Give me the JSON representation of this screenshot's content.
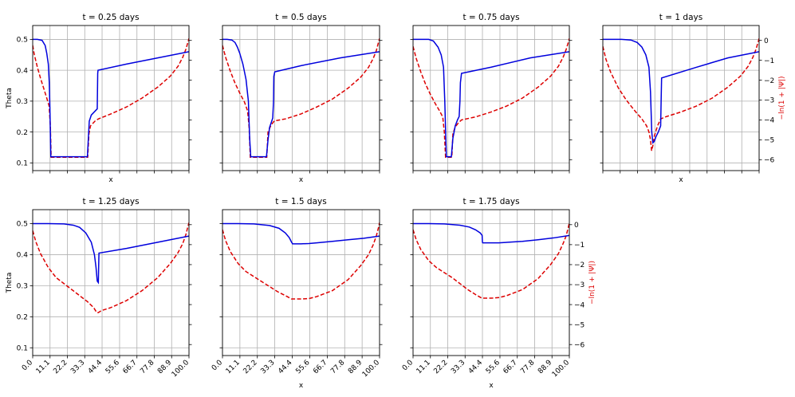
{
  "chart_data": {
    "type": "line",
    "shared": {
      "xlabel": "x",
      "ylabel_left": "Theta",
      "ylabel_right": "−ln(1 + |Ψ|)",
      "xlim": [
        0,
        100
      ],
      "ylim_left": [
        0.075,
        0.545
      ],
      "ylim_right": [
        -6.55,
        0.75
      ],
      "xticks": [
        0.0,
        11.1,
        22.2,
        33.3,
        44.4,
        55.6,
        66.7,
        77.8,
        88.9,
        100.0
      ],
      "xtick_labels": [
        "0.0",
        "11.1",
        "22.2",
        "33.3",
        "44.4",
        "55.6",
        "66.7",
        "77.8",
        "88.9",
        "100.0"
      ],
      "yticks_left": [
        0.1,
        0.2,
        0.3,
        0.4,
        0.5
      ],
      "ytick_labels_left": [
        "0.1",
        "0.2",
        "0.3",
        "0.4",
        "0.5"
      ],
      "yticks_right": [
        0,
        -1,
        -2,
        -3,
        -4,
        -5,
        -6
      ],
      "ytick_labels_right": [
        "0",
        "−1",
        "−2",
        "−3",
        "−4",
        "−5",
        "−6"
      ],
      "grid": true,
      "colors": {
        "theta": "#0000dd",
        "psi": "#dd0000"
      },
      "styles": {
        "theta": "solid",
        "psi": "dashed"
      }
    },
    "panels": [
      {
        "title": "t = 0.25 days",
        "theta": {
          "x": [
            0,
            3,
            6,
            8,
            9,
            10,
            10.6,
            11,
            11.6,
            12.5,
            35,
            36.2,
            37.5,
            41.3,
            41.5,
            41.6,
            41.8,
            60,
            80,
            100
          ],
          "y": [
            0.5,
            0.5,
            0.497,
            0.48,
            0.455,
            0.42,
            0.36,
            0.28,
            0.12,
            0.12,
            0.12,
            0.235,
            0.255,
            0.275,
            0.35,
            0.39,
            0.4,
            0.42,
            0.44,
            0.46
          ]
        },
        "psi": {
          "x": [
            0,
            1,
            3,
            5,
            7,
            9,
            10.5,
            11.3,
            11.8,
            35.2,
            36,
            37,
            40,
            42,
            50,
            60,
            70,
            80,
            88,
            93,
            96,
            98,
            99.3,
            100
          ],
          "y": [
            -0.25,
            -0.7,
            -1.35,
            -1.9,
            -2.4,
            -2.9,
            -3.3,
            -4.3,
            -5.88,
            -5.88,
            -4.7,
            -4.3,
            -4.05,
            -3.95,
            -3.7,
            -3.35,
            -2.9,
            -2.35,
            -1.8,
            -1.3,
            -0.85,
            -0.45,
            -0.1,
            0.1
          ]
        },
        "ylabel_left": true,
        "ylabel_right": false,
        "xlabel": true,
        "xticklabels": false
      },
      {
        "title": "t = 0.5 days",
        "theta": {
          "x": [
            0,
            3,
            6,
            8,
            9.5,
            11,
            13,
            15,
            16.5,
            17.3,
            18,
            28,
            29,
            30,
            32,
            32.5,
            32.7,
            33.3,
            50,
            75,
            100
          ],
          "y": [
            0.5,
            0.5,
            0.498,
            0.49,
            0.475,
            0.455,
            0.42,
            0.37,
            0.3,
            0.18,
            0.12,
            0.12,
            0.175,
            0.215,
            0.245,
            0.3,
            0.38,
            0.395,
            0.415,
            0.44,
            0.46
          ]
        },
        "psi": {
          "x": [
            0,
            2,
            5,
            8,
            11,
            14,
            16,
            17,
            17.7,
            28.2,
            29,
            31,
            33,
            40,
            50,
            60,
            70,
            80,
            88,
            93,
            96,
            98,
            99.3,
            100
          ],
          "y": [
            -0.25,
            -0.85,
            -1.55,
            -2.15,
            -2.65,
            -3.1,
            -3.55,
            -4.4,
            -5.88,
            -5.88,
            -4.6,
            -4.25,
            -4.05,
            -3.95,
            -3.7,
            -3.35,
            -2.95,
            -2.4,
            -1.85,
            -1.35,
            -0.9,
            -0.5,
            -0.1,
            0.1
          ]
        },
        "ylabel_left": false,
        "ylabel_right": false,
        "xlabel": true,
        "xticklabels": false
      },
      {
        "title": "t = 0.75 days",
        "theta": {
          "x": [
            0,
            5,
            10,
            13,
            16,
            18,
            19.5,
            20.3,
            21.3,
            24.5,
            25.5,
            27,
            28.5,
            29.5,
            30,
            30.3,
            31,
            50,
            75,
            100
          ],
          "y": [
            0.5,
            0.5,
            0.5,
            0.495,
            0.475,
            0.45,
            0.41,
            0.3,
            0.12,
            0.12,
            0.18,
            0.22,
            0.24,
            0.25,
            0.3,
            0.36,
            0.39,
            0.41,
            0.44,
            0.46
          ]
        },
        "psi": {
          "x": [
            0,
            2,
            5,
            8,
            11,
            14,
            17,
            19,
            20,
            20.8,
            24.8,
            25.5,
            27,
            29,
            31,
            40,
            50,
            60,
            70,
            80,
            88,
            93,
            96,
            98,
            99.3,
            100
          ],
          "y": [
            -0.3,
            -0.9,
            -1.6,
            -2.2,
            -2.7,
            -3.15,
            -3.55,
            -3.85,
            -4.6,
            -5.88,
            -5.88,
            -4.7,
            -4.35,
            -4.15,
            -4.0,
            -3.85,
            -3.6,
            -3.3,
            -2.9,
            -2.35,
            -1.8,
            -1.3,
            -0.85,
            -0.45,
            -0.1,
            0.1
          ]
        },
        "ylabel_left": false,
        "ylabel_right": false,
        "xlabel": false,
        "xticklabels": false
      },
      {
        "title": "t = 1 days",
        "theta": {
          "x": [
            0,
            6,
            12,
            18,
            22,
            25,
            27.5,
            29.5,
            30.5,
            31.3,
            32,
            33,
            34,
            35.5,
            37,
            37.3,
            37.6,
            60,
            80,
            100
          ],
          "y": [
            0.5,
            0.5,
            0.5,
            0.498,
            0.49,
            0.475,
            0.45,
            0.41,
            0.33,
            0.2,
            0.165,
            0.17,
            0.185,
            0.2,
            0.22,
            0.3,
            0.375,
            0.41,
            0.44,
            0.46
          ]
        },
        "psi": {
          "x": [
            0,
            2,
            5,
            10,
            15,
            20,
            25,
            28,
            29.5,
            30.5,
            31.2,
            32,
            33,
            35,
            37,
            40,
            50,
            60,
            70,
            80,
            88,
            93,
            96,
            98,
            99.3,
            100
          ],
          "y": [
            -0.3,
            -0.95,
            -1.6,
            -2.4,
            -3.0,
            -3.5,
            -3.95,
            -4.3,
            -4.6,
            -5.0,
            -5.55,
            -5.3,
            -4.8,
            -4.3,
            -3.95,
            -3.85,
            -3.6,
            -3.3,
            -2.9,
            -2.35,
            -1.8,
            -1.3,
            -0.85,
            -0.45,
            -0.1,
            0.1
          ]
        },
        "ylabel_left": false,
        "ylabel_right": true,
        "xlabel": true,
        "xticklabels": false
      },
      {
        "title": "t = 1.25 days",
        "theta": {
          "x": [
            0,
            10,
            20,
            26,
            30,
            34,
            37.5,
            39.5,
            40.5,
            41.3,
            42,
            42.2,
            42.4,
            60,
            80,
            100
          ],
          "y": [
            0.5,
            0.5,
            0.499,
            0.495,
            0.488,
            0.47,
            0.44,
            0.4,
            0.36,
            0.315,
            0.31,
            0.36,
            0.405,
            0.42,
            0.44,
            0.46
          ]
        },
        "psi": {
          "x": [
            0,
            2,
            5,
            10,
            15,
            20,
            25,
            30,
            35,
            39,
            41,
            42,
            44,
            50,
            60,
            70,
            80,
            88,
            93,
            96,
            98,
            99.3,
            100
          ],
          "y": [
            -0.3,
            -0.85,
            -1.45,
            -2.15,
            -2.65,
            -2.95,
            -3.25,
            -3.55,
            -3.85,
            -4.15,
            -4.4,
            -4.4,
            -4.3,
            -4.15,
            -3.8,
            -3.3,
            -2.65,
            -1.95,
            -1.4,
            -0.95,
            -0.5,
            -0.1,
            0.1
          ]
        },
        "ylabel_left": true,
        "ylabel_right": false,
        "xlabel": false,
        "xticklabels": true
      },
      {
        "title": "t = 1.5 days",
        "theta": {
          "x": [
            0,
            10,
            20,
            30,
            36,
            40,
            42.5,
            44,
            44.4,
            44.6,
            50,
            55,
            60,
            70,
            80,
            90,
            100
          ],
          "y": [
            0.5,
            0.5,
            0.499,
            0.494,
            0.485,
            0.47,
            0.455,
            0.44,
            0.437,
            0.435,
            0.435,
            0.436,
            0.438,
            0.443,
            0.448,
            0.453,
            0.46
          ]
        },
        "psi": {
          "x": [
            0,
            2,
            5,
            10,
            15,
            20,
            25,
            30,
            35,
            40,
            44,
            50,
            55,
            60,
            70,
            80,
            88,
            93,
            96,
            98,
            99.3,
            100
          ],
          "y": [
            -0.25,
            -0.8,
            -1.35,
            -1.95,
            -2.35,
            -2.6,
            -2.85,
            -3.1,
            -3.35,
            -3.55,
            -3.72,
            -3.72,
            -3.7,
            -3.6,
            -3.3,
            -2.75,
            -2.05,
            -1.5,
            -1.0,
            -0.55,
            -0.15,
            0.1
          ]
        },
        "ylabel_left": false,
        "ylabel_right": false,
        "xlabel": true,
        "xticklabels": true
      },
      {
        "title": "t = 1.75 days",
        "theta": {
          "x": [
            0,
            10,
            20,
            30,
            36,
            40,
            43,
            44.2,
            44.4,
            44.6,
            55,
            70,
            80,
            90,
            100
          ],
          "y": [
            0.5,
            0.5,
            0.499,
            0.495,
            0.489,
            0.48,
            0.47,
            0.462,
            0.44,
            0.438,
            0.438,
            0.443,
            0.448,
            0.454,
            0.462
          ]
        },
        "psi": {
          "x": [
            0,
            2,
            5,
            10,
            15,
            20,
            25,
            30,
            35,
            40,
            44,
            50,
            55,
            60,
            70,
            80,
            88,
            93,
            96,
            98,
            99.3,
            100
          ],
          "y": [
            -0.25,
            -0.75,
            -1.25,
            -1.8,
            -2.15,
            -2.4,
            -2.65,
            -2.95,
            -3.25,
            -3.5,
            -3.68,
            -3.68,
            -3.65,
            -3.55,
            -3.25,
            -2.7,
            -2.0,
            -1.45,
            -0.95,
            -0.55,
            -0.15,
            0.1
          ]
        },
        "ylabel_left": false,
        "ylabel_right": true,
        "xlabel": true,
        "xticklabels": true
      }
    ]
  }
}
